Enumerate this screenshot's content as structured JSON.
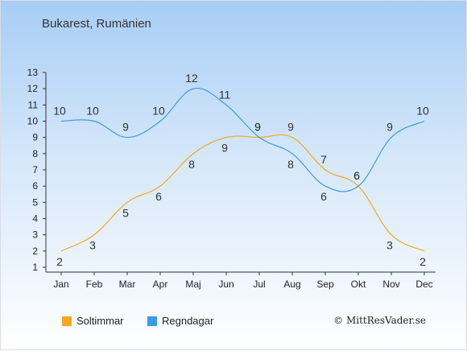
{
  "header": {
    "title": "Bukarest, Rumänien"
  },
  "copyright": "© MittResVader.se",
  "chart_data": {
    "type": "line",
    "title": "Bukarest, Rumänien",
    "xlabel": "",
    "ylabel": "",
    "categories": [
      "Jan",
      "Feb",
      "Mar",
      "Apr",
      "Maj",
      "Jun",
      "Jul",
      "Aug",
      "Sep",
      "Okt",
      "Nov",
      "Dec"
    ],
    "ylim": [
      1,
      13
    ],
    "yticks": [
      1,
      2,
      3,
      4,
      5,
      6,
      7,
      8,
      9,
      10,
      11,
      12,
      13
    ],
    "grid": false,
    "legend_position": "bottom-left",
    "series": [
      {
        "name": "Soltimmar",
        "color": "#f5a623",
        "values": [
          2,
          3,
          5,
          6,
          8,
          9,
          9,
          9,
          7,
          6,
          3,
          2
        ]
      },
      {
        "name": "Regndagar",
        "color": "#3a9be8",
        "values": [
          10,
          10,
          9,
          10,
          12,
          11,
          9,
          8,
          6,
          6,
          9,
          10
        ]
      }
    ]
  }
}
